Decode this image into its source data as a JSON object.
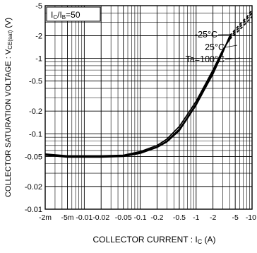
{
  "chart_data": {
    "type": "line",
    "xlabel": "COLLECTOR  CURRENT : I",
    "xlabel_sub": "C",
    "xlabel_unit": " (A)",
    "ylabel": "COLLECTOR  SATURATION  VOLTAGE : V",
    "ylabel_sub": "CE(sat)",
    "ylabel_unit": " (V)",
    "x_scale": "log",
    "y_scale": "log",
    "xlim": [
      -0.002,
      -10
    ],
    "ylim": [
      -0.01,
      -5
    ],
    "grid": true,
    "annotation": {
      "text_main": "I",
      "sub1": "C",
      "slash": "/I",
      "sub2": "B",
      "value": "=50"
    },
    "x_ticks": [
      {
        "label": "-2m",
        "value": -0.002
      },
      {
        "label": "-5m",
        "value": -0.005
      },
      {
        "label": "-0.01",
        "value": -0.01
      },
      {
        "label": "-0.02",
        "value": -0.02
      },
      {
        "label": "-0.05",
        "value": -0.05
      },
      {
        "label": "-0.1",
        "value": -0.1
      },
      {
        "label": "-0.2",
        "value": -0.2
      },
      {
        "label": "-0.5",
        "value": -0.5
      },
      {
        "label": "-1",
        "value": -1
      },
      {
        "label": "-2",
        "value": -2
      },
      {
        "label": "-5",
        "value": -5
      },
      {
        "label": "-10",
        "value": -10
      }
    ],
    "y_ticks": [
      {
        "label": "-5",
        "value": -5
      },
      {
        "label": "-2",
        "value": -2
      },
      {
        "label": "-1",
        "value": -1
      },
      {
        "label": "-0.5",
        "value": -0.5
      },
      {
        "label": "-0.2",
        "value": -0.2
      },
      {
        "label": "-0.1",
        "value": -0.1
      },
      {
        "label": "-0.05",
        "value": -0.05
      },
      {
        "label": "-0.02",
        "value": -0.02
      },
      {
        "label": "-0.01",
        "value": -0.01
      }
    ],
    "series": [
      {
        "name": "-25°C",
        "x": [
          -0.002,
          -0.005,
          -0.01,
          -0.02,
          -0.05,
          -0.1,
          -0.2,
          -0.3,
          -0.5,
          -0.7,
          -1,
          -1.5,
          -2,
          -3,
          -4
        ],
        "y": [
          -0.052,
          -0.049,
          -0.049,
          -0.049,
          -0.05,
          -0.055,
          -0.066,
          -0.078,
          -0.11,
          -0.16,
          -0.24,
          -0.42,
          -0.62,
          -1.2,
          -2.0
        ],
        "dashed_x": [
          -4,
          -6,
          -8,
          -10
        ],
        "dashed_y": [
          -2.0,
          -2.8,
          -3.5,
          -4.4
        ]
      },
      {
        "name": "25°C",
        "x": [
          -0.002,
          -0.005,
          -0.01,
          -0.02,
          -0.05,
          -0.1,
          -0.2,
          -0.3,
          -0.5,
          -0.7,
          -1,
          -1.5,
          -2,
          -3,
          -4
        ],
        "y": [
          -0.053,
          -0.05,
          -0.05,
          -0.05,
          -0.051,
          -0.056,
          -0.067,
          -0.08,
          -0.115,
          -0.165,
          -0.25,
          -0.44,
          -0.65,
          -1.25,
          -1.9
        ],
        "dashed_x": [
          -4,
          -6,
          -8,
          -10
        ],
        "dashed_y": [
          -1.9,
          -2.6,
          -3.3,
          -4.0
        ]
      },
      {
        "name": "Ta=100°C",
        "x": [
          -0.002,
          -0.005,
          -0.01,
          -0.02,
          -0.05,
          -0.1,
          -0.2,
          -0.3,
          -0.5,
          -0.7,
          -1,
          -1.5,
          -2,
          -3,
          -4
        ],
        "y": [
          -0.054,
          -0.051,
          -0.051,
          -0.051,
          -0.052,
          -0.058,
          -0.07,
          -0.085,
          -0.125,
          -0.18,
          -0.27,
          -0.47,
          -0.7,
          -1.3,
          -1.8
        ],
        "dashed_x": [
          -4,
          -6,
          -8,
          -10
        ],
        "dashed_y": [
          -1.8,
          -2.4,
          -3.0,
          -3.6
        ]
      }
    ]
  }
}
